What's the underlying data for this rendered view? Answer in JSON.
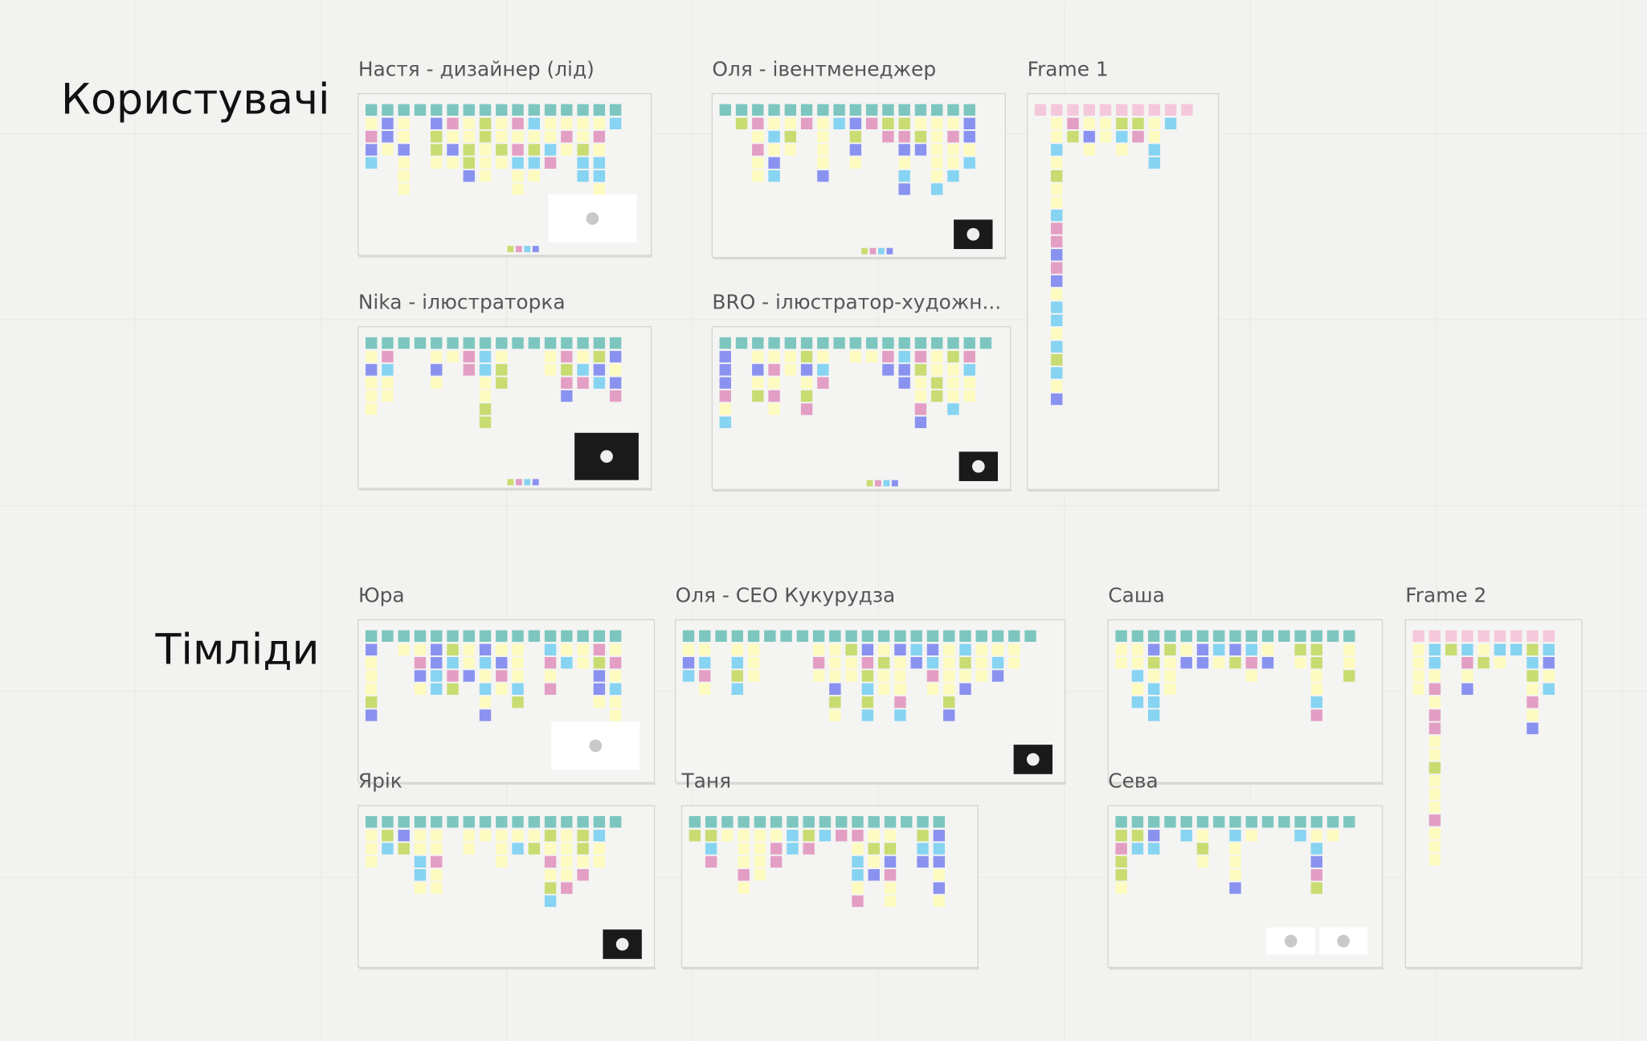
{
  "board": {
    "sections": [
      {
        "label": "Користувачі",
        "frames": [
          {
            "title": "Настя - дизайнер (лід)"
          },
          {
            "title": "Оля - івентменеджер"
          },
          {
            "title": "Frame 1"
          },
          {
            "title": "Nika - ілюстраторка"
          },
          {
            "title": "BRO - ілюстратор-художн..."
          }
        ]
      },
      {
        "label": "Тімліди",
        "frames": [
          {
            "title": "Юра"
          },
          {
            "title": "Оля - CEO Кукурудза"
          },
          {
            "title": "Саша"
          },
          {
            "title": "Frame 2"
          },
          {
            "title": "Ярік"
          },
          {
            "title": "Таня"
          },
          {
            "title": "Сева"
          }
        ]
      }
    ]
  }
}
